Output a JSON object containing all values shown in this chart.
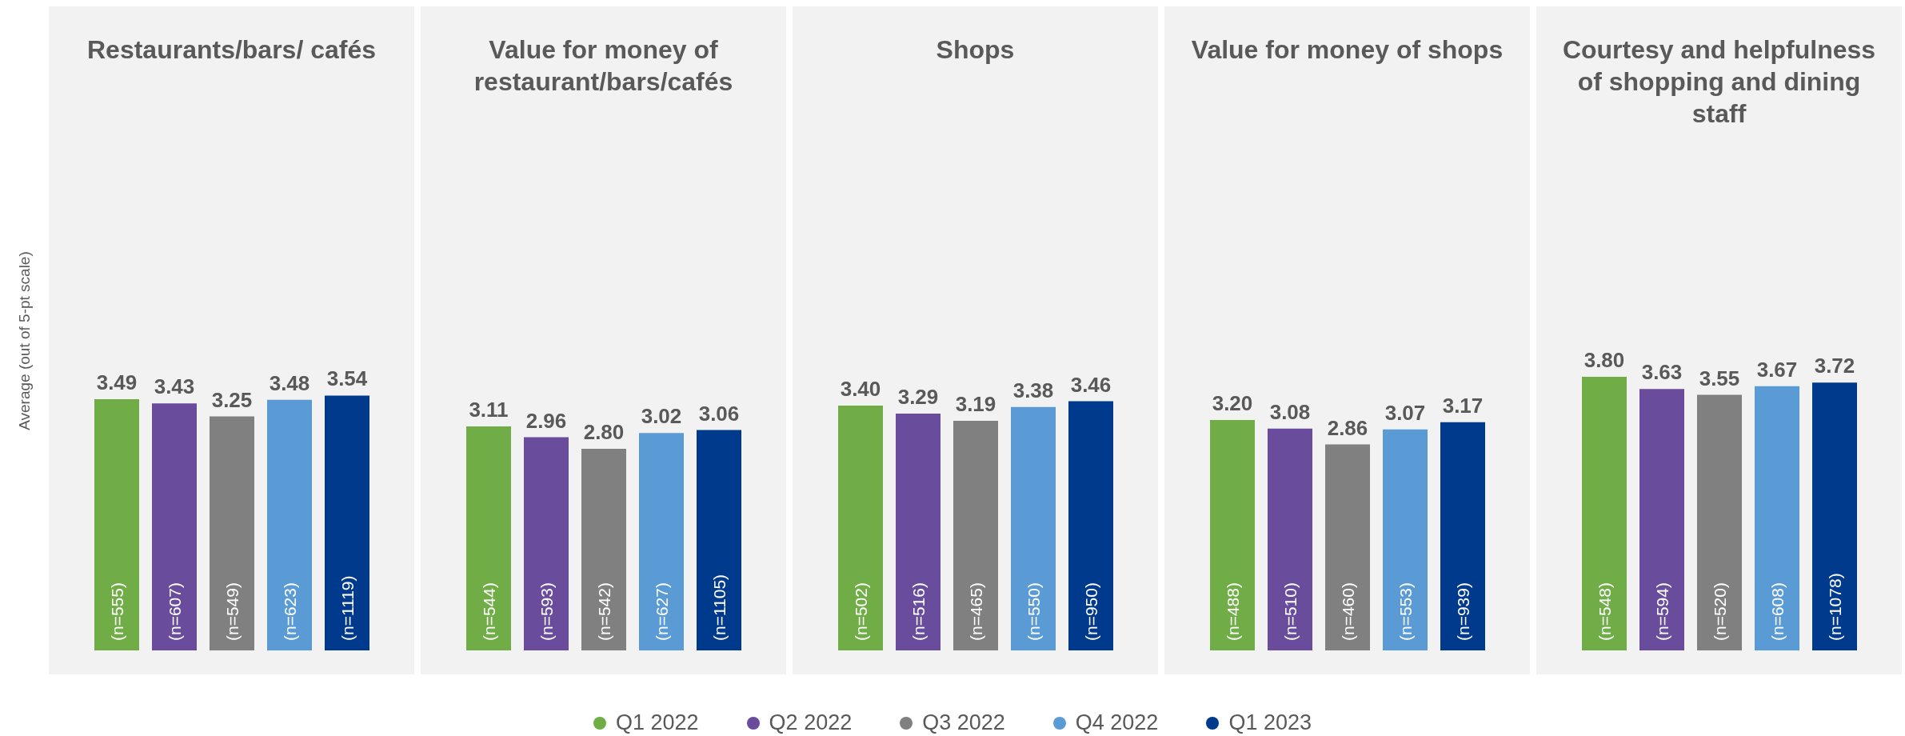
{
  "chart_data": [
    {
      "type": "bar",
      "title": "Restaurants/bars/ cafés",
      "ylabel": "Average (out of 5-pt scale)",
      "categories": [
        null
      ],
      "tick_labels": false,
      "grid": false,
      "legend": "bottom",
      "series": [
        {
          "name": "Q1 2022",
          "color": "#70ad47",
          "values": [
            3.49
          ],
          "value_labels": [
            "3.49"
          ]
        },
        {
          "name": "Q2 2022",
          "color": "#6a4c9c",
          "values": [
            3.43
          ],
          "value_labels": [
            "3.43"
          ]
        },
        {
          "name": "Q3 2022",
          "color": "#808080",
          "values": [
            3.25
          ],
          "value_labels": [
            "3.25"
          ]
        },
        {
          "name": "Q4 2022",
          "color": "#5b9bd5",
          "values": [
            3.48
          ],
          "value_labels": [
            "3.48"
          ]
        },
        {
          "name": "Q1 2023",
          "color": "#003a8c",
          "values": [
            3.54
          ],
          "value_labels": [
            "3.54"
          ]
        }
      ],
      "annotations": [
        "(n=555)",
        "(n=607)",
        "(n=549)",
        "(n=623)",
        "(n=1119)"
      ]
    },
    {
      "type": "bar",
      "title": "Value for money of restaurant/bars/cafés",
      "categories": [
        null
      ],
      "tick_labels": false,
      "grid": false,
      "series": [
        {
          "color": "#70ad47",
          "values": [
            3.11
          ],
          "value_labels": [
            "3.11"
          ]
        },
        {
          "color": "#6a4c9c",
          "values": [
            2.96
          ],
          "value_labels": [
            "2.96"
          ]
        },
        {
          "color": "#808080",
          "values": [
            2.8
          ],
          "value_labels": [
            "2.80"
          ]
        },
        {
          "color": "#5b9bd5",
          "values": [
            3.02
          ],
          "value_labels": [
            "3.02"
          ]
        },
        {
          "color": "#003a8c",
          "values": [
            3.06
          ],
          "value_labels": [
            "3.06"
          ]
        }
      ],
      "annotations": [
        "(n=544)",
        "(n=593)",
        "(n=542)",
        "(n=627)",
        "(n=1105)"
      ]
    },
    {
      "type": "bar",
      "title": "Shops",
      "categories": [
        null
      ],
      "tick_labels": false,
      "grid": false,
      "series": [
        {
          "color": "#70ad47",
          "values": [
            3.4
          ],
          "value_labels": [
            "3.40"
          ]
        },
        {
          "color": "#6a4c9c",
          "values": [
            3.29
          ],
          "value_labels": [
            "3.29"
          ]
        },
        {
          "color": "#808080",
          "values": [
            3.19
          ],
          "value_labels": [
            "3.19"
          ]
        },
        {
          "color": "#5b9bd5",
          "values": [
            3.38
          ],
          "value_labels": [
            "3.38"
          ]
        },
        {
          "color": "#003a8c",
          "values": [
            3.46
          ],
          "value_labels": [
            "3.46"
          ]
        }
      ],
      "annotations": [
        "(n=502)",
        "(n=516)",
        "(n=465)",
        "(n=550)",
        "(n=950)"
      ]
    },
    {
      "type": "bar",
      "title": "Value for money of shops",
      "categories": [
        null
      ],
      "tick_labels": false,
      "grid": false,
      "series": [
        {
          "color": "#70ad47",
          "values": [
            3.2
          ],
          "value_labels": [
            "3.20"
          ]
        },
        {
          "color": "#6a4c9c",
          "values": [
            3.08
          ],
          "value_labels": [
            "3.08"
          ]
        },
        {
          "color": "#808080",
          "values": [
            2.86
          ],
          "value_labels": [
            "2.86"
          ]
        },
        {
          "color": "#5b9bd5",
          "values": [
            3.07
          ],
          "value_labels": [
            "3.07"
          ]
        },
        {
          "color": "#003a8c",
          "values": [
            3.17
          ],
          "value_labels": [
            "3.17"
          ]
        }
      ],
      "annotations": [
        "(n=488)",
        "(n=510)",
        "(n=460)",
        "(n=553)",
        "(n=939)"
      ]
    },
    {
      "type": "bar",
      "title": "Courtesy and helpfulness of shopping and dining staff",
      "categories": [
        null
      ],
      "tick_labels": false,
      "grid": false,
      "series": [
        {
          "color": "#70ad47",
          "values": [
            3.8
          ],
          "value_labels": [
            "3.80"
          ]
        },
        {
          "color": "#6a4c9c",
          "values": [
            3.63
          ],
          "value_labels": [
            "3.63"
          ]
        },
        {
          "color": "#808080",
          "values": [
            3.55
          ],
          "value_labels": [
            "3.55"
          ]
        },
        {
          "color": "#5b9bd5",
          "values": [
            3.67
          ],
          "value_labels": [
            "3.67"
          ]
        },
        {
          "color": "#003a8c",
          "values": [
            3.72
          ],
          "value_labels": [
            "3.72"
          ]
        }
      ],
      "annotations": [
        "(n=548)",
        "(n=594)",
        "(n=520)",
        "(n=608)",
        "(n=1078)"
      ]
    }
  ]
}
